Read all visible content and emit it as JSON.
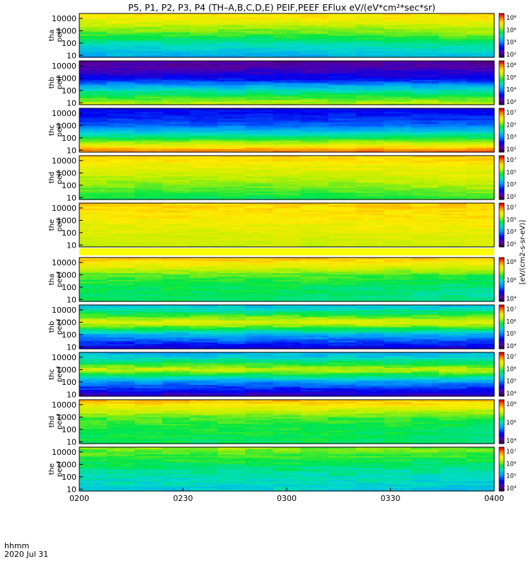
{
  "chart_data": {
    "type": "heatmap",
    "title": "P5, P1, P2, P3, P4 (TH–A,B,C,D,E) PEIF,PEEF EFlux eV/(eV*cm²*sec*sr)",
    "xlabel_line1": "hhmm",
    "xlabel_line2": "2020 Jul 31",
    "x_ticks": [
      "0200",
      "0230",
      "0300",
      "0330",
      "0400"
    ],
    "x_range": [
      "02:00",
      "04:00"
    ],
    "y_scale": "log",
    "y_ticks": [
      "10",
      "100",
      "1000",
      "10000"
    ],
    "y_range_ev": [
      7,
      25000
    ],
    "colorbar_label": "[eV/(cm2-s-sr-eV)]",
    "panels": [
      {
        "label": "tha peif",
        "line1": "tha",
        "line2": "peif",
        "species": "ion",
        "zmin_exp": 2,
        "zmax_exp": 8,
        "zticks": [
          "10²",
          "10⁴",
          "10⁶",
          "10⁸"
        ],
        "profile": [
          [
            1,
            4.4
          ],
          [
            2,
            5.0
          ],
          [
            3,
            5.9
          ],
          [
            4,
            6.7
          ],
          [
            5,
            7.0
          ]
        ],
        "late_boost": 0.6
      },
      {
        "label": "thb peif",
        "line1": "thb",
        "line2": "peif",
        "species": "ion",
        "zmin_exp": 2,
        "zmax_exp": 8,
        "zticks": [
          "10²",
          "10⁴",
          "10⁶",
          "10⁸"
        ],
        "profile": [
          [
            1,
            6.2
          ],
          [
            2,
            5.0
          ],
          [
            3,
            3.3
          ],
          [
            4,
            2.7
          ],
          [
            5,
            2.3
          ]
        ],
        "late_boost": 0.0
      },
      {
        "label": "thc peif",
        "line1": "thc",
        "line2": "peif",
        "species": "ion",
        "zmin_exp": 1,
        "zmax_exp": 8,
        "zticks": [
          "10¹",
          "10³",
          "10⁵",
          "10⁷"
        ],
        "profile": [
          [
            1,
            7.3
          ],
          [
            2,
            5.0
          ],
          [
            3,
            3.2
          ],
          [
            4,
            2.6
          ],
          [
            5,
            2.4
          ]
        ],
        "late_boost": 0.3
      },
      {
        "label": "thd peif",
        "line1": "thd",
        "line2": "peif",
        "species": "ion",
        "zmin_exp": 1,
        "zmax_exp": 8,
        "zticks": [
          "10¹",
          "10³",
          "10⁵",
          "10⁷"
        ],
        "profile": [
          [
            1,
            5.0
          ],
          [
            2,
            5.6
          ],
          [
            3,
            6.1
          ],
          [
            4,
            6.6
          ],
          [
            5,
            6.9
          ]
        ],
        "late_boost": 0.7
      },
      {
        "label": "the peif",
        "line1": "the",
        "line2": "peif",
        "species": "ion",
        "zmin_exp": 1,
        "zmax_exp": 8,
        "zticks": [
          "10¹",
          "10³",
          "10⁵",
          "10⁷"
        ],
        "profile": [
          [
            1,
            6.0
          ],
          [
            2,
            6.2
          ],
          [
            3,
            6.5
          ],
          [
            4,
            6.7
          ],
          [
            5,
            6.9
          ]
        ],
        "late_boost": 0.3
      },
      {
        "label": "tha peef",
        "line1": "tha",
        "line2": "peef",
        "species": "electron",
        "zmin_exp": 2,
        "zmax_exp": 8,
        "zticks": [
          "10⁴",
          "10⁶",
          "10⁸"
        ],
        "profile": [
          [
            1,
            5.3
          ],
          [
            2,
            5.4
          ],
          [
            3,
            5.8
          ],
          [
            4,
            6.8
          ],
          [
            5,
            7.6
          ]
        ],
        "late_boost": -0.5
      },
      {
        "label": "thb peef",
        "line1": "thb",
        "line2": "peef",
        "species": "electron",
        "zmin_exp": 3,
        "zmax_exp": 8,
        "zticks": [
          "10⁴",
          "10⁵",
          "10⁶",
          "10⁷"
        ],
        "profile": [
          [
            1,
            4.0
          ],
          [
            2,
            5.0
          ],
          [
            3,
            6.8
          ],
          [
            4,
            5.5
          ],
          [
            5,
            4.6
          ]
        ],
        "late_boost": 0.0
      },
      {
        "label": "thc peef",
        "line1": "thc",
        "line2": "peef",
        "species": "electron",
        "zmin_exp": 3,
        "zmax_exp": 8,
        "zticks": [
          "10⁴",
          "10⁵",
          "10⁶",
          "10⁷"
        ],
        "profile": [
          [
            1,
            3.8
          ],
          [
            2,
            4.8
          ],
          [
            3,
            6.6
          ],
          [
            4,
            5.3
          ],
          [
            5,
            4.6
          ]
        ],
        "late_boost": 0.0
      },
      {
        "label": "thd peef",
        "line1": "thd",
        "line2": "peef",
        "species": "electron",
        "zmin_exp": 2,
        "zmax_exp": 8,
        "zticks": [
          "10⁴",
          "10⁶",
          "10⁸"
        ],
        "profile": [
          [
            1,
            5.4
          ],
          [
            2,
            5.5
          ],
          [
            3,
            5.8
          ],
          [
            4,
            6.8
          ],
          [
            5,
            7.6
          ]
        ],
        "late_boost": -0.5
      },
      {
        "label": "the peef",
        "line1": "the",
        "line2": "peef",
        "species": "electron",
        "zmin_exp": 3,
        "zmax_exp": 8,
        "zticks": [
          "10⁴",
          "10⁵",
          "10⁶",
          "10⁷"
        ],
        "profile": [
          [
            1,
            5.3
          ],
          [
            2,
            5.5
          ],
          [
            3,
            5.8
          ],
          [
            4,
            6.2
          ],
          [
            5,
            6.5
          ]
        ],
        "late_boost": -0.3
      }
    ]
  },
  "colors": {
    "background": "#ffffff",
    "separator": "#ffff00",
    "axis": "#000000"
  }
}
